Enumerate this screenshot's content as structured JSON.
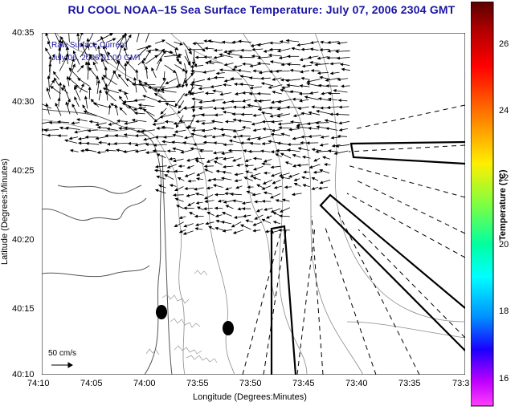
{
  "title": "RU COOL  NOAA–15  Sea Surface Temperature:  July 07, 2006 2304 GMT",
  "map": {
    "overlay_label_1": "Raw Surface Current",
    "overlay_label_2": "July 06, 2006 01:00 GMT",
    "xlabel": "Longitude (Degrees:Minutes)",
    "ylabel": "Latitude (Degrees:Minutes)",
    "x_ticks": [
      "74:10",
      "74:05",
      "74:00",
      "73:55",
      "73:50",
      "73:45",
      "73:40",
      "73:35",
      "73:3"
    ],
    "y_ticks": [
      "40:35",
      "40:30",
      "40:25",
      "40:20",
      "40:15",
      "40:10"
    ],
    "scale_bar_label": "50 cm/s"
  },
  "colorbar": {
    "title": "Temperature (°C)",
    "ticks": [
      "26",
      "24",
      "22",
      "20",
      "18",
      "16"
    ],
    "range": [
      15.2,
      27.3
    ]
  },
  "colors": {
    "title": "#1a14a0",
    "vectors": "#000000",
    "contours": "#7d7d7d"
  }
}
